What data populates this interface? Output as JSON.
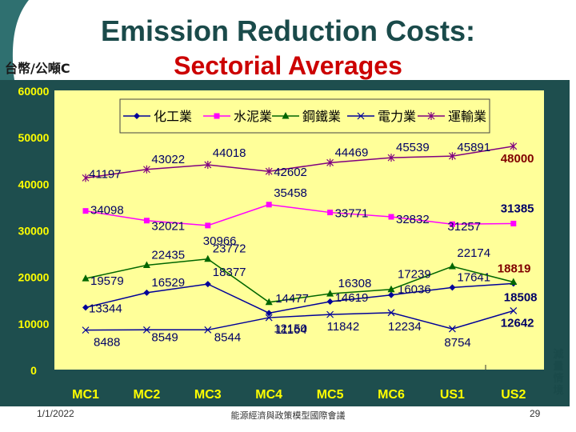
{
  "header": {
    "title_line1": "Emission Reduction Costs:",
    "title_line2": "Sectorial Averages",
    "unit": "台幣/公噸C"
  },
  "footer": {
    "date": "1/1/2022",
    "center": "能源經濟與政策模型國際會議",
    "page": "29"
  },
  "side_label": "減量情境",
  "colors": {
    "plot_bg": "#ffff99",
    "frame_bg": "#1e4e4e",
    "axis_text": "#ffff00",
    "chemical": "#000099",
    "cement": "#ff00ff",
    "steel": "#006600",
    "power": "#000099",
    "transport": "#800080",
    "highlight": "#800000"
  },
  "chart_data": {
    "type": "line",
    "categories": [
      "MC1",
      "MC2",
      "MC3",
      "MC4",
      "MC5",
      "MC6",
      "US1",
      "US2"
    ],
    "ylim": [
      0,
      60000
    ],
    "yticks": [
      "0",
      "10000",
      "20000",
      "30000",
      "40000",
      "50000",
      "60000"
    ],
    "ylabel": "台幣/公噸C",
    "legend_position": "top",
    "series": [
      {
        "name": "化工業",
        "marker": "diamond",
        "values": [
          13344,
          16529,
          18377,
          12150,
          14619,
          16036,
          17641,
          18508
        ],
        "labels": [
          "13344",
          "16529",
          "18377",
          "12150",
          "14619",
          "16036",
          "17641",
          "18508"
        ]
      },
      {
        "name": "水泥業",
        "marker": "square",
        "values": [
          34098,
          32021,
          30966,
          35458,
          33771,
          32832,
          31257,
          31385
        ],
        "labels": [
          "34098",
          "32021",
          "30966",
          "35458",
          "33771",
          "32832",
          "31257",
          "31385"
        ]
      },
      {
        "name": "鋼鐵業",
        "marker": "triangle",
        "values": [
          19579,
          22435,
          23772,
          14477,
          16308,
          17239,
          22174,
          18819
        ],
        "labels": [
          "19579",
          "22435",
          "23772",
          "14477",
          "16308",
          "17239",
          "22174",
          "18819"
        ]
      },
      {
        "name": "電力業",
        "marker": "x",
        "values": [
          8488,
          8549,
          8544,
          11164,
          11842,
          12234,
          8754,
          12642
        ],
        "labels": [
          "8488",
          "8549",
          "8544",
          "11164",
          "11842",
          "12234",
          "8754",
          "12642"
        ]
      },
      {
        "name": "運輸業",
        "marker": "star",
        "values": [
          41197,
          43022,
          44018,
          42602,
          44469,
          45539,
          45891,
          48000
        ],
        "labels": [
          "41197",
          "43022",
          "44018",
          "42602",
          "44469",
          "45539",
          "45891",
          "48000"
        ]
      }
    ]
  }
}
